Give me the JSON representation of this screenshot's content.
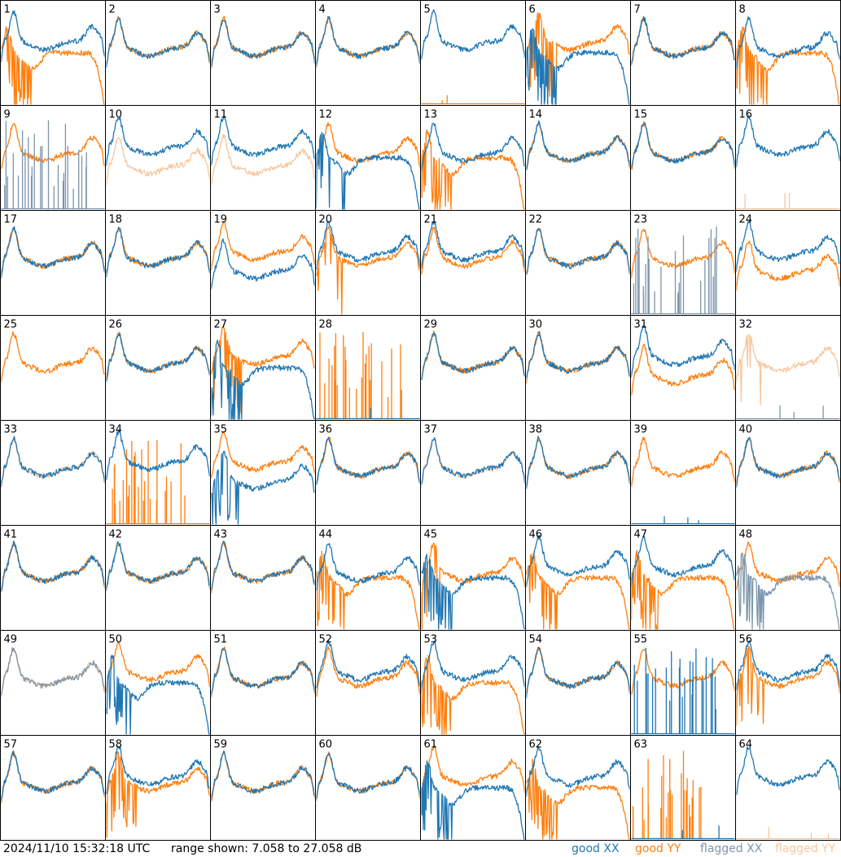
{
  "footer": {
    "timestamp": "2024/11/10 15:32:18 UTC",
    "range": "range shown: 7.058 to 27.058 dB",
    "legend": [
      {
        "label": "good XX",
        "color": "#1f77b4"
      },
      {
        "label": "good YY",
        "color": "#ff7f0e"
      },
      {
        "label": "flagged XX",
        "color": "#7d95ad"
      },
      {
        "label": "flagged YY",
        "color": "#f7c79c"
      }
    ]
  },
  "chart_data": {
    "type": "line",
    "title": "",
    "ylim": [
      7.058,
      27.058
    ],
    "grid": "8x8 small multiples",
    "colors": {
      "good_xx": "#1f77b4",
      "good_yy": "#ff7f0e",
      "flagged_xx": "#7d95ad",
      "flagged_yy": "#f7c79c"
    },
    "panels": [
      {
        "label": "1",
        "xx": "good",
        "yy": "good",
        "xx_shape": "high",
        "yy_shape": "dropoff",
        "xx_spikes": 1,
        "yy_spikes": 3
      },
      {
        "label": "2",
        "xx": "good",
        "yy": "good",
        "xx_shape": "normal",
        "yy_shape": "normal",
        "xx_spikes": 1,
        "yy_spikes": 1
      },
      {
        "label": "3",
        "xx": "good",
        "yy": "good",
        "xx_shape": "normal",
        "yy_shape": "normal",
        "xx_spikes": 1,
        "yy_spikes": 1
      },
      {
        "label": "4",
        "xx": "good",
        "yy": "good",
        "xx_shape": "normal",
        "yy_shape": "normal",
        "xx_spikes": 1,
        "yy_spikes": 1
      },
      {
        "label": "5",
        "xx": "good",
        "yy": "good",
        "xx_shape": "high",
        "yy_shape": "dead",
        "xx_spikes": 1,
        "yy_spikes": 0
      },
      {
        "label": "6",
        "xx": "good",
        "yy": "good",
        "xx_shape": "dropoff",
        "yy_shape": "high",
        "xx_spikes": 3,
        "yy_spikes": 2
      },
      {
        "label": "7",
        "xx": "good",
        "yy": "good",
        "xx_shape": "normal",
        "yy_shape": "normal",
        "xx_spikes": 1,
        "yy_spikes": 1
      },
      {
        "label": "8",
        "xx": "good",
        "yy": "good",
        "xx_shape": "normal",
        "yy_shape": "dropoff",
        "xx_spikes": 1,
        "yy_spikes": 2
      },
      {
        "label": "9",
        "xx": "flagged",
        "yy": "good",
        "xx_shape": "sparse",
        "yy_shape": "normal",
        "xx_spikes": 0,
        "yy_spikes": 1
      },
      {
        "label": "10",
        "xx": "good",
        "yy": "flagged",
        "xx_shape": "high",
        "yy_shape": "low",
        "xx_spikes": 1,
        "yy_spikes": 1
      },
      {
        "label": "11",
        "xx": "good",
        "yy": "flagged",
        "xx_shape": "high",
        "yy_shape": "low",
        "xx_spikes": 1,
        "yy_spikes": 1
      },
      {
        "label": "12",
        "xx": "good",
        "yy": "good",
        "xx_shape": "dropoff",
        "yy_shape": "normal",
        "xx_spikes": 2,
        "yy_spikes": 1
      },
      {
        "label": "13",
        "xx": "good",
        "yy": "good",
        "xx_shape": "normal",
        "yy_shape": "dropoff",
        "xx_spikes": 1,
        "yy_spikes": 3
      },
      {
        "label": "14",
        "xx": "good",
        "yy": "good",
        "xx_shape": "normal",
        "yy_shape": "normal",
        "xx_spikes": 1,
        "yy_spikes": 1
      },
      {
        "label": "15",
        "xx": "good",
        "yy": "good",
        "xx_shape": "normal",
        "yy_shape": "normal",
        "xx_spikes": 1,
        "yy_spikes": 1
      },
      {
        "label": "16",
        "xx": "good",
        "yy": "flagged",
        "xx_shape": "high",
        "yy_shape": "dead",
        "xx_spikes": 1,
        "yy_spikes": 0
      },
      {
        "label": "17",
        "xx": "good",
        "yy": "good",
        "xx_shape": "normal",
        "yy_shape": "normal",
        "xx_spikes": 1,
        "yy_spikes": 1
      },
      {
        "label": "18",
        "xx": "good",
        "yy": "good",
        "xx_shape": "normal",
        "yy_shape": "normal",
        "xx_spikes": 1,
        "yy_spikes": 1
      },
      {
        "label": "19",
        "xx": "good",
        "yy": "good",
        "xx_shape": "low",
        "yy_shape": "high",
        "xx_spikes": 1,
        "yy_spikes": 1
      },
      {
        "label": "20",
        "xx": "good",
        "yy": "good",
        "xx_shape": "high",
        "yy_shape": "normal",
        "xx_spikes": 1,
        "yy_spikes": 2
      },
      {
        "label": "21",
        "xx": "good",
        "yy": "good",
        "xx_shape": "high",
        "yy_shape": "normal",
        "xx_spikes": 1,
        "yy_spikes": 1
      },
      {
        "label": "22",
        "xx": "good",
        "yy": "good",
        "xx_shape": "normal",
        "yy_shape": "normal",
        "xx_spikes": 1,
        "yy_spikes": 1
      },
      {
        "label": "23",
        "xx": "flagged",
        "yy": "good",
        "xx_shape": "sparse",
        "yy_shape": "normal",
        "xx_spikes": 0,
        "yy_spikes": 1
      },
      {
        "label": "24",
        "xx": "good",
        "yy": "good",
        "xx_shape": "high",
        "yy_shape": "low",
        "xx_spikes": 1,
        "yy_spikes": 1
      },
      {
        "label": "25",
        "xx": "good",
        "yy": "good",
        "xx_shape": "none",
        "yy_shape": "normal",
        "xx_spikes": 0,
        "yy_spikes": 1
      },
      {
        "label": "26",
        "xx": "good",
        "yy": "good",
        "xx_shape": "normal",
        "yy_shape": "normal",
        "xx_spikes": 1,
        "yy_spikes": 1
      },
      {
        "label": "27",
        "xx": "good",
        "yy": "good",
        "xx_shape": "dropoff",
        "yy_shape": "high",
        "xx_spikes": 3,
        "yy_spikes": 2
      },
      {
        "label": "28",
        "xx": "good",
        "yy": "good",
        "xx_shape": "dead",
        "yy_shape": "sparse",
        "xx_spikes": 0,
        "yy_spikes": 0
      },
      {
        "label": "29",
        "xx": "good",
        "yy": "good",
        "xx_shape": "normal",
        "yy_shape": "normal",
        "xx_spikes": 1,
        "yy_spikes": 1
      },
      {
        "label": "30",
        "xx": "good",
        "yy": "good",
        "xx_shape": "normal",
        "yy_shape": "normal",
        "xx_spikes": 1,
        "yy_spikes": 1
      },
      {
        "label": "31",
        "xx": "good",
        "yy": "good",
        "xx_shape": "high",
        "yy_shape": "low",
        "xx_spikes": 1,
        "yy_spikes": 1
      },
      {
        "label": "32",
        "xx": "flagged",
        "yy": "flagged",
        "xx_shape": "dead",
        "yy_shape": "normal",
        "xx_spikes": 0,
        "yy_spikes": 2
      },
      {
        "label": "33",
        "xx": "good",
        "yy": "flagged",
        "xx_shape": "normal",
        "yy_shape": "normal",
        "xx_spikes": 1,
        "yy_spikes": 1
      },
      {
        "label": "34",
        "xx": "good",
        "yy": "good",
        "xx_shape": "high",
        "yy_shape": "sparse",
        "xx_spikes": 1,
        "yy_spikes": 0
      },
      {
        "label": "35",
        "xx": "good",
        "yy": "good",
        "xx_shape": "low",
        "yy_shape": "high",
        "xx_spikes": 2,
        "yy_spikes": 1
      },
      {
        "label": "36",
        "xx": "good",
        "yy": "good",
        "xx_shape": "normal",
        "yy_shape": "normal",
        "xx_spikes": 1,
        "yy_spikes": 1
      },
      {
        "label": "37",
        "xx": "good",
        "yy": "flagged",
        "xx_shape": "normal",
        "yy_shape": "normal",
        "xx_spikes": 1,
        "yy_spikes": 1
      },
      {
        "label": "38",
        "xx": "good",
        "yy": "good",
        "xx_shape": "normal",
        "yy_shape": "normal",
        "xx_spikes": 1,
        "yy_spikes": 1
      },
      {
        "label": "39",
        "xx": "good",
        "yy": "good",
        "xx_shape": "dead",
        "yy_shape": "normal",
        "xx_spikes": 0,
        "yy_spikes": 1
      },
      {
        "label": "40",
        "xx": "good",
        "yy": "good",
        "xx_shape": "normal",
        "yy_shape": "normal",
        "xx_spikes": 1,
        "yy_spikes": 1
      },
      {
        "label": "41",
        "xx": "good",
        "yy": "good",
        "xx_shape": "normal",
        "yy_shape": "normal",
        "xx_spikes": 1,
        "yy_spikes": 1
      },
      {
        "label": "42",
        "xx": "good",
        "yy": "good",
        "xx_shape": "normal",
        "yy_shape": "normal",
        "xx_spikes": 1,
        "yy_spikes": 1
      },
      {
        "label": "43",
        "xx": "good",
        "yy": "good",
        "xx_shape": "normal",
        "yy_shape": "normal",
        "xx_spikes": 1,
        "yy_spikes": 1
      },
      {
        "label": "44",
        "xx": "good",
        "yy": "good",
        "xx_shape": "normal",
        "yy_shape": "dropoff",
        "xx_spikes": 1,
        "yy_spikes": 3
      },
      {
        "label": "45",
        "xx": "good",
        "yy": "good",
        "xx_shape": "dropoff",
        "yy_shape": "normal",
        "xx_spikes": 2,
        "yy_spikes": 2
      },
      {
        "label": "46",
        "xx": "good",
        "yy": "good",
        "xx_shape": "high",
        "yy_shape": "dropoff",
        "xx_spikes": 1,
        "yy_spikes": 3
      },
      {
        "label": "47",
        "xx": "good",
        "yy": "good",
        "xx_shape": "high",
        "yy_shape": "dropoff",
        "xx_spikes": 1,
        "yy_spikes": 3
      },
      {
        "label": "48",
        "xx": "flagged",
        "yy": "good",
        "xx_shape": "dropoff",
        "yy_shape": "normal",
        "xx_spikes": 2,
        "yy_spikes": 1
      },
      {
        "label": "49",
        "xx": "flagged",
        "yy": "flagged",
        "xx_shape": "normal",
        "yy_shape": "normal",
        "xx_spikes": 1,
        "yy_spikes": 1
      },
      {
        "label": "50",
        "xx": "good",
        "yy": "good",
        "xx_shape": "dropoff",
        "yy_shape": "high",
        "xx_spikes": 2,
        "yy_spikes": 1
      },
      {
        "label": "51",
        "xx": "good",
        "yy": "good",
        "xx_shape": "normal",
        "yy_shape": "normal",
        "xx_spikes": 1,
        "yy_spikes": 1
      },
      {
        "label": "52",
        "xx": "good",
        "yy": "good",
        "xx_shape": "high",
        "yy_shape": "normal",
        "xx_spikes": 1,
        "yy_spikes": 1
      },
      {
        "label": "53",
        "xx": "good",
        "yy": "good",
        "xx_shape": "high",
        "yy_shape": "dropoff",
        "xx_spikes": 1,
        "yy_spikes": 3
      },
      {
        "label": "54",
        "xx": "good",
        "yy": "good",
        "xx_shape": "normal",
        "yy_shape": "normal",
        "xx_spikes": 1,
        "yy_spikes": 1
      },
      {
        "label": "55",
        "xx": "good",
        "yy": "good",
        "xx_shape": "sparse",
        "yy_shape": "normal",
        "xx_spikes": 0,
        "yy_spikes": 1
      },
      {
        "label": "56",
        "xx": "good",
        "yy": "good",
        "xx_shape": "high",
        "yy_shape": "normal",
        "xx_spikes": 1,
        "yy_spikes": 2
      },
      {
        "label": "57",
        "xx": "good",
        "yy": "good",
        "xx_shape": "normal",
        "yy_shape": "normal",
        "xx_spikes": 1,
        "yy_spikes": 1
      },
      {
        "label": "58",
        "xx": "good",
        "yy": "good",
        "xx_shape": "high",
        "yy_shape": "normal",
        "xx_spikes": 1,
        "yy_spikes": 2
      },
      {
        "label": "59",
        "xx": "good",
        "yy": "good",
        "xx_shape": "normal",
        "yy_shape": "normal",
        "xx_spikes": 1,
        "yy_spikes": 1
      },
      {
        "label": "60",
        "xx": "good",
        "yy": "good",
        "xx_shape": "normal",
        "yy_shape": "normal",
        "xx_spikes": 1,
        "yy_spikes": 1
      },
      {
        "label": "61",
        "xx": "good",
        "yy": "good",
        "xx_shape": "dropoff",
        "yy_shape": "high",
        "xx_spikes": 3,
        "yy_spikes": 1
      },
      {
        "label": "62",
        "xx": "good",
        "yy": "good",
        "xx_shape": "high",
        "yy_shape": "dropoff",
        "xx_spikes": 1,
        "yy_spikes": 3
      },
      {
        "label": "63",
        "xx": "good",
        "yy": "good",
        "xx_shape": "dead",
        "yy_shape": "sparse",
        "xx_spikes": 0,
        "yy_spikes": 0
      },
      {
        "label": "64",
        "xx": "good",
        "yy": "flagged",
        "xx_shape": "high",
        "yy_shape": "dead",
        "xx_spikes": 1,
        "yy_spikes": 0
      }
    ]
  }
}
